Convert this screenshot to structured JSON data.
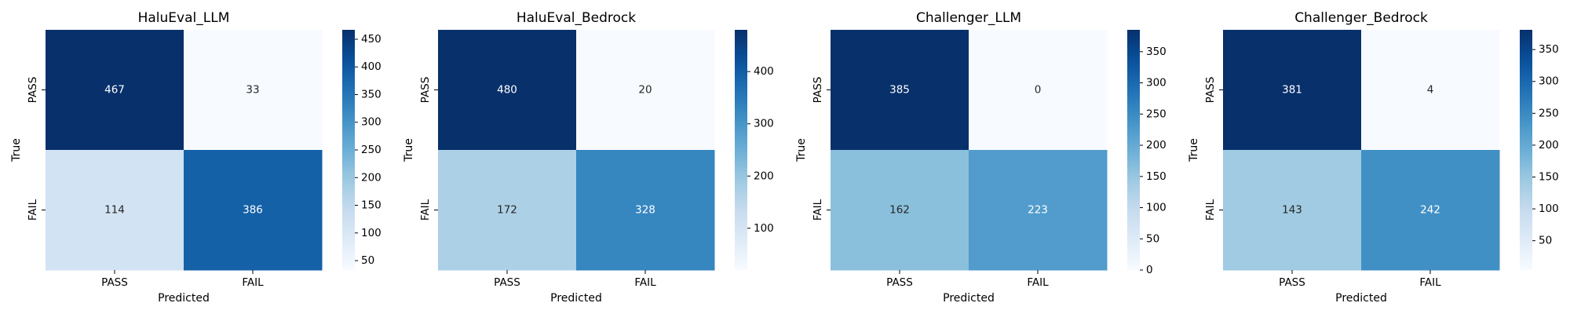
{
  "chart_data": [
    {
      "type": "heatmap",
      "title": "HaluEval_LLM",
      "xlabel": "Predicted",
      "ylabel": "True",
      "x_categories": [
        "PASS",
        "FAIL"
      ],
      "y_categories": [
        "PASS",
        "FAIL"
      ],
      "values": [
        [
          467,
          33
        ],
        [
          114,
          386
        ]
      ],
      "colormap": "Blues",
      "colorbar_ticks": [
        50,
        100,
        150,
        200,
        250,
        300,
        350,
        400,
        450
      ]
    },
    {
      "type": "heatmap",
      "title": "HaluEval_Bedrock",
      "xlabel": "Predicted",
      "ylabel": "True",
      "x_categories": [
        "PASS",
        "FAIL"
      ],
      "y_categories": [
        "PASS",
        "FAIL"
      ],
      "values": [
        [
          480,
          20
        ],
        [
          172,
          328
        ]
      ],
      "colormap": "Blues",
      "colorbar_ticks": [
        100,
        200,
        300,
        400
      ]
    },
    {
      "type": "heatmap",
      "title": "Challenger_LLM",
      "xlabel": "Predicted",
      "ylabel": "True",
      "x_categories": [
        "PASS",
        "FAIL"
      ],
      "y_categories": [
        "PASS",
        "FAIL"
      ],
      "values": [
        [
          385,
          0
        ],
        [
          162,
          223
        ]
      ],
      "colormap": "Blues",
      "colorbar_ticks": [
        0,
        50,
        100,
        150,
        200,
        250,
        300,
        350
      ]
    },
    {
      "type": "heatmap",
      "title": "Challenger_Bedrock",
      "xlabel": "Predicted",
      "ylabel": "True",
      "x_categories": [
        "PASS",
        "FAIL"
      ],
      "y_categories": [
        "PASS",
        "FAIL"
      ],
      "values": [
        [
          381,
          4
        ],
        [
          143,
          242
        ]
      ],
      "colormap": "Blues",
      "colorbar_ticks": [
        50,
        100,
        150,
        200,
        250,
        300,
        350
      ]
    }
  ]
}
